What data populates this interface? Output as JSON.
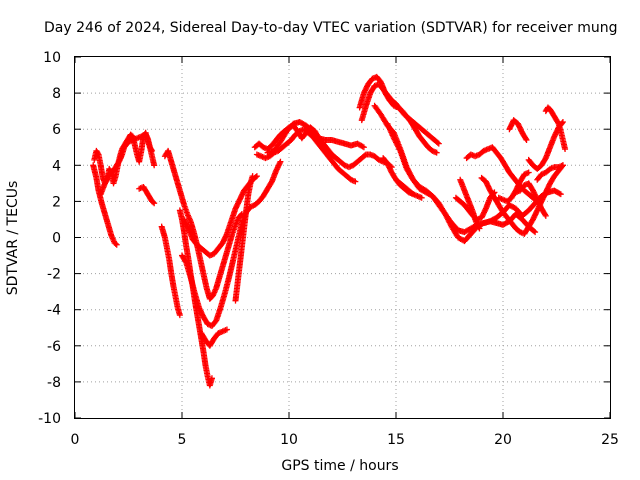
{
  "chart_data": {
    "type": "scatter",
    "title": "Day 246 of 2024, Sidereal Day-to-day VTEC variation (SDTVAR) for receiver mung",
    "xlabel": "GPS time / hours",
    "ylabel": "SDTVAR / TECUs",
    "xlim": [
      0,
      25
    ],
    "ylim": [
      -10,
      10
    ],
    "xticks": [
      "0",
      "5",
      "10",
      "15",
      "20",
      "25"
    ],
    "yticks": [
      "10",
      "8",
      "6",
      "4",
      "2",
      "0",
      "-2",
      "-4",
      "-6",
      "-8",
      "-10"
    ],
    "grid": true,
    "legend": "none",
    "marker": "plus",
    "color": "#ff0000",
    "series": [
      {
        "x": [
          0.85,
          1.0,
          1.1,
          1.25,
          1.4,
          1.55,
          1.7,
          1.85,
          1.95
        ],
        "y": [
          4.0,
          3.3,
          2.6,
          1.9,
          1.3,
          0.7,
          0.1,
          -0.3,
          -0.4
        ]
      },
      {
        "x": [
          0.9,
          1.0,
          1.1,
          1.2,
          1.3,
          1.4,
          1.5,
          1.6,
          1.7,
          1.8,
          1.9,
          2.0,
          2.1,
          2.2,
          2.3,
          2.4,
          2.5,
          2.6,
          2.7,
          2.8,
          2.9,
          3.0,
          3.1,
          3.2,
          3.3,
          3.4,
          3.5,
          3.6
        ],
        "y": [
          4.3,
          4.8,
          4.6,
          4.0,
          3.3,
          3.0,
          3.2,
          3.8,
          3.6,
          3.0,
          3.4,
          4.0,
          4.5,
          4.9,
          5.1,
          5.3,
          5.5,
          5.7,
          5.6,
          5.1,
          4.6,
          4.2,
          4.8,
          5.6,
          5.8,
          5.4,
          5.0,
          4.8
        ]
      },
      {
        "x": [
          1.2,
          1.4,
          1.5,
          1.6,
          1.7,
          1.8,
          1.9,
          2.0,
          2.1,
          2.2,
          2.3,
          2.5,
          2.7,
          2.9,
          3.1,
          3.3,
          3.4,
          3.5,
          3.6,
          3.7
        ],
        "y": [
          2.4,
          3.0,
          3.3,
          3.5,
          3.6,
          3.7,
          3.9,
          4.1,
          4.3,
          4.6,
          5.0,
          5.3,
          5.4,
          5.5,
          5.6,
          5.7,
          5.5,
          5.0,
          4.5,
          4.0
        ]
      },
      {
        "x": [
          3.0,
          3.2,
          3.3,
          3.4,
          3.5,
          3.6,
          3.7
        ],
        "y": [
          2.7,
          2.8,
          2.6,
          2.4,
          2.2,
          2.0,
          1.9
        ]
      },
      {
        "x": [
          4.05,
          4.2,
          4.4,
          4.5,
          4.6,
          4.7,
          4.8,
          4.9
        ],
        "y": [
          0.6,
          0.0,
          -1.2,
          -2.0,
          -2.7,
          -3.3,
          -3.9,
          -4.3
        ]
      },
      {
        "x": [
          4.2,
          4.35,
          4.5,
          4.65,
          4.8,
          4.95,
          5.1,
          5.25,
          5.4,
          5.55,
          5.7,
          5.85,
          6.0,
          6.15,
          6.3,
          6.45,
          6.6,
          6.75,
          6.9,
          7.05,
          7.2,
          7.35,
          7.5,
          7.65,
          7.8
        ],
        "y": [
          4.5,
          4.8,
          4.2,
          3.6,
          3.0,
          2.4,
          1.8,
          1.3,
          0.9,
          0.3,
          -0.4,
          -1.2,
          -2.0,
          -2.8,
          -3.4,
          -3.2,
          -2.8,
          -2.2,
          -1.6,
          -1.0,
          -0.4,
          0.2,
          0.7,
          1.1,
          1.3
        ]
      },
      {
        "x": [
          4.9,
          5.0,
          5.1,
          5.2,
          5.3,
          5.4,
          5.5,
          5.6,
          5.7,
          5.8,
          5.9,
          6.0,
          6.1,
          6.2,
          6.3,
          6.4
        ],
        "y": [
          1.5,
          1.0,
          0.3,
          -0.5,
          -1.2,
          -2.0,
          -2.7,
          -3.5,
          -4.2,
          -4.9,
          -5.6,
          -6.3,
          -7.1,
          -7.7,
          -8.2,
          -7.8
        ]
      },
      {
        "x": [
          5.0,
          5.2,
          5.4,
          5.6,
          5.8,
          6.0,
          6.2,
          6.4,
          6.6,
          6.8,
          7.0,
          7.2,
          7.4,
          7.6,
          7.8,
          8.0,
          8.2,
          8.4,
          8.6,
          8.8,
          9.0,
          9.2,
          9.4,
          9.6
        ],
        "y": [
          -1.0,
          -1.4,
          -2.2,
          -3.1,
          -3.9,
          -4.4,
          -4.8,
          -4.9,
          -4.6,
          -3.9,
          -3.1,
          -2.2,
          -1.2,
          -0.2,
          0.8,
          1.4,
          1.7,
          1.8,
          2.0,
          2.3,
          2.7,
          3.1,
          3.7,
          4.2
        ]
      },
      {
        "x": [
          5.1,
          5.3,
          5.5,
          5.7,
          5.9,
          6.1,
          6.3,
          6.5,
          6.7,
          6.9,
          7.1,
          7.3,
          7.5,
          7.7,
          7.9,
          8.1,
          8.3,
          8.5
        ],
        "y": [
          1.0,
          0.5,
          -0.1,
          -0.4,
          -0.6,
          -0.8,
          -1.0,
          -0.9,
          -0.6,
          -0.3,
          0.2,
          0.9,
          1.6,
          2.1,
          2.6,
          2.9,
          3.2,
          3.4
        ]
      },
      {
        "x": [
          5.9,
          6.1,
          6.3,
          6.5,
          6.7,
          6.9,
          7.1
        ],
        "y": [
          -5.3,
          -5.7,
          -6.0,
          -5.6,
          -5.3,
          -5.2,
          -5.1
        ]
      },
      {
        "x": [
          7.5,
          7.6,
          7.7,
          7.8,
          7.9,
          8.0,
          8.1,
          8.2,
          8.3
        ],
        "y": [
          -3.5,
          -2.5,
          -1.5,
          -0.5,
          0.5,
          1.5,
          2.4,
          3.0,
          3.4
        ]
      },
      {
        "x": [
          8.4,
          8.6,
          8.8,
          9.0,
          9.2,
          9.4,
          9.6,
          9.8,
          10.0,
          10.2,
          10.4,
          10.6,
          10.8,
          11.0,
          11.2,
          11.4,
          11.6,
          11.8,
          12.0,
          12.2,
          12.4,
          12.6,
          12.8,
          13.0,
          13.2,
          13.4,
          13.6,
          13.8,
          14.0,
          14.2,
          14.4,
          14.6,
          14.8
        ],
        "y": [
          5.0,
          5.2,
          5.0,
          4.9,
          5.1,
          5.4,
          5.7,
          5.9,
          6.1,
          6.2,
          5.9,
          5.5,
          5.8,
          6.1,
          5.9,
          5.5,
          5.2,
          4.9,
          4.6,
          4.4,
          4.2,
          4.0,
          3.9,
          4.0,
          4.2,
          4.4,
          4.6,
          4.6,
          4.5,
          4.3,
          4.2,
          4.1,
          3.9
        ]
      },
      {
        "x": [
          8.5,
          8.7,
          8.9,
          9.1,
          9.3,
          9.5,
          9.7,
          9.9,
          10.1,
          10.3,
          10.5,
          10.7,
          10.9,
          11.1,
          11.3,
          11.5,
          11.7,
          11.9,
          12.1,
          12.3,
          12.5,
          12.7,
          12.9,
          13.1
        ],
        "y": [
          4.6,
          4.5,
          4.4,
          4.5,
          4.7,
          4.8,
          5.0,
          5.2,
          5.4,
          5.7,
          5.9,
          6.0,
          5.8,
          5.6,
          5.3,
          5.0,
          4.7,
          4.4,
          4.1,
          3.8,
          3.6,
          3.4,
          3.2,
          3.1
        ]
      },
      {
        "x": [
          9.0,
          9.3,
          9.6,
          9.9,
          10.2,
          10.5,
          10.8,
          11.1,
          11.4,
          11.7,
          12.0,
          12.3,
          12.6,
          12.9,
          13.2,
          13.5
        ],
        "y": [
          4.7,
          4.8,
          5.3,
          5.9,
          6.3,
          6.4,
          6.2,
          5.9,
          5.5,
          5.4,
          5.4,
          5.3,
          5.2,
          5.1,
          5.2,
          5.0
        ]
      },
      {
        "x": [
          13.3,
          13.5,
          13.7,
          13.9,
          14.1,
          14.3,
          14.5,
          14.7,
          14.9,
          15.1,
          15.3,
          15.5,
          15.7,
          15.9,
          16.1,
          16.3,
          16.5,
          16.7,
          16.9
        ],
        "y": [
          7.2,
          8.0,
          8.5,
          8.8,
          8.9,
          8.6,
          8.0,
          7.6,
          7.3,
          7.2,
          7.0,
          6.7,
          6.4,
          6.0,
          5.6,
          5.3,
          5.0,
          4.8,
          4.7
        ]
      },
      {
        "x": [
          13.4,
          13.6,
          13.8,
          14.0,
          14.2,
          14.4,
          14.6,
          14.8,
          15.0,
          15.2,
          15.4,
          15.6,
          15.8,
          16.0,
          16.2,
          16.4,
          16.6,
          16.8,
          17.0
        ],
        "y": [
          6.5,
          7.3,
          8.0,
          8.4,
          8.5,
          8.2,
          7.9,
          7.6,
          7.4,
          7.1,
          6.8,
          6.6,
          6.4,
          6.2,
          6.0,
          5.8,
          5.6,
          5.4,
          5.2
        ]
      },
      {
        "x": [
          14.0,
          14.3,
          14.6,
          14.9,
          15.2,
          15.5,
          15.8,
          16.1,
          16.4,
          16.7,
          17.0,
          17.3,
          17.6,
          17.9,
          18.2,
          18.5,
          18.8,
          19.1,
          19.4,
          19.7,
          20.0,
          20.3,
          20.6,
          20.9,
          21.2,
          21.5,
          21.8,
          22.1,
          22.4,
          22.7
        ],
        "y": [
          7.3,
          6.8,
          6.2,
          5.8,
          4.9,
          3.9,
          3.2,
          2.8,
          2.6,
          2.3,
          1.8,
          1.3,
          0.8,
          0.4,
          0.3,
          0.5,
          0.7,
          0.8,
          0.9,
          1.1,
          1.4,
          1.8,
          1.6,
          1.2,
          1.5,
          1.9,
          2.3,
          2.5,
          2.6,
          2.4
        ]
      },
      {
        "x": [
          14.6,
          14.9,
          15.2,
          15.5,
          15.8,
          16.1,
          16.4,
          16.7,
          17.0,
          17.3,
          17.6,
          17.9,
          18.2,
          18.5,
          18.8,
          19.1,
          19.4,
          19.7,
          20.0,
          20.3,
          20.6,
          20.9,
          21.2,
          21.5
        ],
        "y": [
          6.3,
          5.5,
          4.8,
          3.8,
          3.2,
          2.7,
          2.5,
          2.3,
          1.9,
          1.3,
          0.6,
          0.0,
          -0.2,
          0.2,
          0.6,
          0.8,
          0.9,
          0.8,
          0.7,
          0.9,
          1.3,
          1.0,
          0.6,
          0.3
        ]
      },
      {
        "x": [
          14.4,
          14.6,
          14.8,
          15.0,
          15.2,
          15.4,
          15.6,
          15.8
        ],
        "y": [
          4.4,
          4.1,
          3.6,
          3.2,
          2.9,
          2.7,
          2.5,
          2.4
        ]
      },
      {
        "x": [
          15.0,
          15.2,
          15.4,
          15.6,
          15.8,
          16.0,
          16.2
        ],
        "y": [
          3.2,
          3.0,
          2.8,
          2.6,
          2.4,
          2.3,
          2.2
        ]
      },
      {
        "x": [
          17.8,
          18.0,
          18.2,
          18.4,
          18.6,
          18.8,
          19.0,
          19.2,
          19.4,
          19.6
        ],
        "y": [
          2.2,
          2.0,
          1.8,
          1.5,
          1.2,
          1.0,
          1.1,
          1.6,
          2.2,
          2.5
        ]
      },
      {
        "x": [
          18.0,
          18.1,
          18.2,
          18.3,
          18.4,
          18.5,
          18.6,
          18.7,
          18.8,
          18.9
        ],
        "y": [
          3.2,
          2.9,
          2.6,
          2.3,
          2.0,
          1.7,
          1.4,
          1.0,
          0.7,
          0.5
        ]
      },
      {
        "x": [
          18.3,
          18.5,
          18.7,
          18.9,
          19.1,
          19.3,
          19.5,
          19.7,
          19.9,
          20.1,
          20.3,
          20.5,
          20.7,
          20.9,
          21.1,
          21.3,
          21.5,
          21.7
        ],
        "y": [
          4.4,
          4.6,
          4.5,
          4.6,
          4.8,
          4.9,
          5.0,
          4.7,
          4.4,
          4.0,
          3.6,
          3.3,
          3.0,
          2.7,
          2.5,
          2.3,
          2.1,
          1.9
        ]
      },
      {
        "x": [
          19.0,
          19.2,
          19.4,
          19.6,
          19.8,
          20.0,
          20.2,
          20.4,
          20.6,
          20.8,
          21.0,
          21.2,
          21.4,
          21.6,
          21.8,
          22.0,
          22.2,
          22.4,
          22.6,
          22.8
        ],
        "y": [
          3.3,
          3.1,
          2.6,
          2.2,
          1.8,
          1.4,
          1.1,
          0.8,
          0.5,
          0.3,
          0.2,
          0.6,
          1.0,
          1.5,
          2.0,
          2.5,
          3.0,
          3.4,
          3.7,
          4.0
        ]
      },
      {
        "x": [
          19.8,
          20.0,
          20.2,
          20.4,
          20.6,
          20.8,
          21.0,
          21.2
        ],
        "y": [
          2.2,
          2.1,
          2.0,
          2.2,
          2.6,
          3.1,
          3.5,
          3.6
        ]
      },
      {
        "x": [
          20.6,
          20.8,
          21.0,
          21.2,
          21.4,
          21.6,
          21.8,
          22.0
        ],
        "y": [
          2.5,
          2.6,
          2.9,
          3.0,
          2.6,
          2.1,
          1.6,
          1.2
        ]
      },
      {
        "x": [
          20.3,
          20.5,
          20.7,
          20.9,
          21.1
        ],
        "y": [
          6.0,
          6.5,
          6.3,
          5.8,
          5.4
        ]
      },
      {
        "x": [
          21.2,
          21.4,
          21.6,
          21.8,
          22.0,
          22.2,
          22.4,
          22.6,
          22.8
        ],
        "y": [
          4.3,
          4.0,
          3.8,
          4.0,
          4.4,
          5.0,
          5.6,
          6.1,
          6.4
        ]
      },
      {
        "x": [
          22.0,
          22.1,
          22.2,
          22.3,
          22.4,
          22.5,
          22.6,
          22.7,
          22.8,
          22.9
        ],
        "y": [
          7.0,
          7.2,
          7.1,
          6.9,
          6.7,
          6.5,
          6.3,
          5.9,
          5.4,
          4.9
        ]
      },
      {
        "x": [
          21.6,
          21.8,
          22.0,
          22.2,
          22.4,
          22.6,
          22.8
        ],
        "y": [
          3.2,
          3.5,
          3.6,
          3.8,
          3.9,
          3.9,
          4.0
        ]
      }
    ]
  }
}
